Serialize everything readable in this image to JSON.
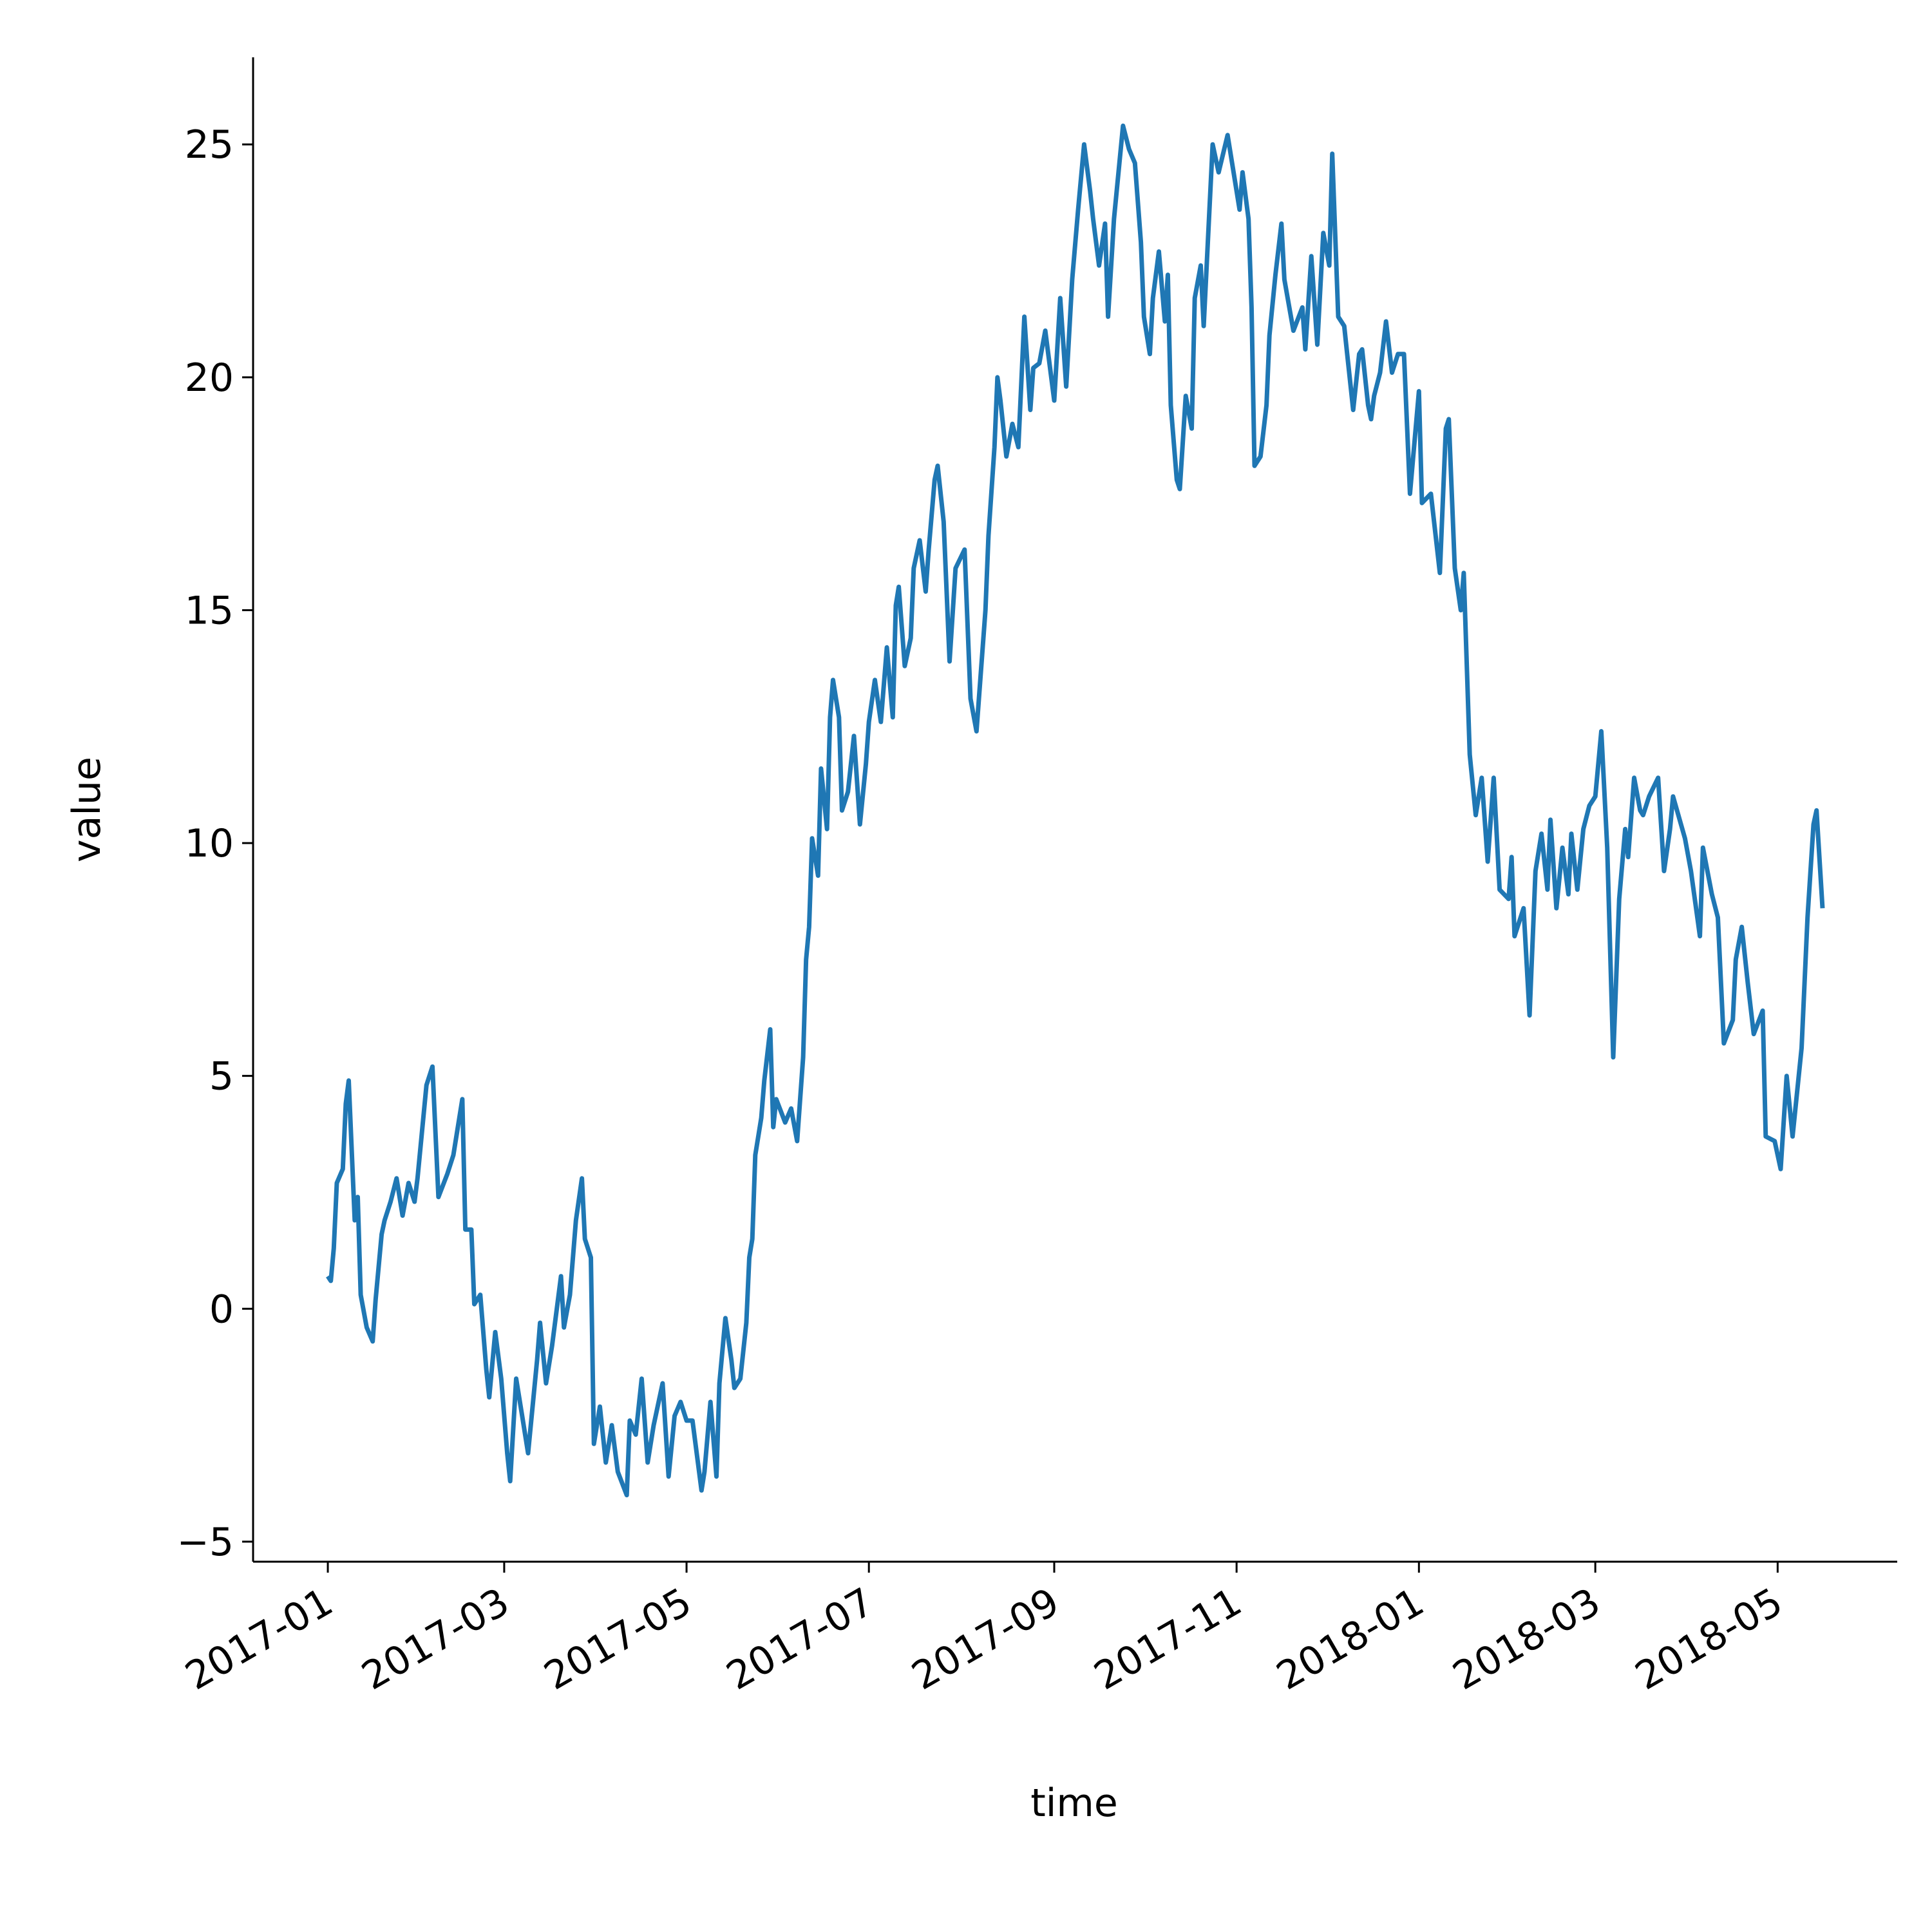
{
  "chart_data": {
    "type": "line",
    "x_label": "time",
    "y_label": "value",
    "color": "#1f77b4",
    "xlim": [
      -25,
      525
    ],
    "ylim": [
      -5.43,
      26.87
    ],
    "xticks": [
      {
        "value": 0,
        "label": "2017-01"
      },
      {
        "value": 59,
        "label": "2017-03"
      },
      {
        "value": 120,
        "label": "2017-05"
      },
      {
        "value": 181,
        "label": "2017-07"
      },
      {
        "value": 243,
        "label": "2017-09"
      },
      {
        "value": 304,
        "label": "2017-11"
      },
      {
        "value": 365,
        "label": "2018-01"
      },
      {
        "value": 424,
        "label": "2018-03"
      },
      {
        "value": 485,
        "label": "2018-05"
      }
    ],
    "yticks": [
      {
        "value": -5,
        "label": "−5"
      },
      0,
      5,
      10,
      15,
      20,
      25
    ],
    "x": [
      0,
      1,
      2,
      3,
      5,
      6,
      7,
      9,
      10,
      11,
      13,
      15,
      16,
      18,
      19,
      21,
      23,
      25,
      27,
      29,
      30,
      33,
      35,
      37,
      40,
      42,
      45,
      46,
      48,
      49,
      51,
      53,
      54,
      56,
      58,
      60,
      61,
      63,
      65,
      67,
      70,
      71,
      73,
      75,
      78,
      79,
      81,
      83,
      85,
      86,
      88,
      89,
      91,
      93,
      95,
      97,
      100,
      101,
      103,
      105,
      107,
      109,
      112,
      114,
      116,
      118,
      120,
      122,
      125,
      126,
      128,
      130,
      131,
      133,
      135,
      136,
      138,
      140,
      141,
      142,
      143,
      145,
      146,
      148,
      149,
      150,
      153,
      155,
      157,
      159,
      160,
      161,
      162,
      164,
      165,
      167,
      168,
      169,
      171,
      172,
      174,
      176,
      178,
      180,
      181,
      183,
      185,
      187,
      189,
      190,
      191,
      193,
      195,
      196,
      198,
      200,
      201,
      203,
      204,
      206,
      208,
      210,
      213,
      215,
      217,
      220,
      221,
      223,
      224,
      225,
      227,
      229,
      231,
      233,
      235,
      236,
      238,
      240,
      243,
      245,
      247,
      249,
      251,
      253,
      255,
      256,
      258,
      260,
      261,
      263,
      266,
      268,
      270,
      272,
      273,
      275,
      276,
      278,
      280,
      281,
      282,
      284,
      285,
      287,
      289,
      290,
      292,
      293,
      296,
      298,
      301,
      303,
      305,
      306,
      308,
      309,
      310,
      312,
      314,
      315,
      317,
      319,
      320,
      323,
      326,
      327,
      329,
      331,
      333,
      335,
      336,
      338,
      340,
      341,
      343,
      345,
      346,
      348,
      349,
      350,
      352,
      354,
      356,
      358,
      360,
      362,
      365,
      366,
      369,
      372,
      374,
      375,
      377,
      379,
      380,
      382,
      384,
      386,
      388,
      390,
      392,
      395,
      396,
      397,
      400,
      402,
      404,
      406,
      408,
      409,
      411,
      413,
      415,
      416,
      418,
      420,
      422,
      424,
      426,
      428,
      430,
      432,
      434,
      435,
      437,
      439,
      440,
      442,
      445,
      447,
      449,
      450,
      454,
      456,
      459,
      460,
      463,
      465,
      467,
      470,
      471,
      473,
      475,
      477,
      480,
      481,
      484,
      486,
      488,
      490,
      493,
      495,
      497,
      498,
      500
    ],
    "values": [
      0.7,
      0.6,
      1.3,
      2.7,
      3.0,
      4.4,
      4.9,
      1.9,
      2.4,
      0.3,
      -0.4,
      -0.7,
      0.2,
      1.6,
      1.9,
      2.3,
      2.8,
      2.0,
      2.7,
      2.3,
      2.8,
      4.8,
      5.2,
      2.4,
      2.9,
      3.3,
      4.5,
      1.7,
      1.7,
      0.1,
      0.3,
      -1.3,
      -1.9,
      -0.5,
      -1.5,
      -3.1,
      -3.7,
      -1.5,
      -2.3,
      -3.1,
      -1.1,
      -0.3,
      -1.6,
      -0.8,
      0.7,
      -0.4,
      0.3,
      1.9,
      2.8,
      1.5,
      1.1,
      -2.9,
      -2.1,
      -3.3,
      -2.5,
      -3.5,
      -4.0,
      -2.4,
      -2.7,
      -1.5,
      -3.3,
      -2.5,
      -1.6,
      -3.6,
      -2.3,
      -2.0,
      -2.4,
      -2.4,
      -3.9,
      -3.5,
      -2.0,
      -3.6,
      -1.6,
      -0.2,
      -1.1,
      -1.7,
      -1.5,
      -0.3,
      1.1,
      1.5,
      3.3,
      4.1,
      4.9,
      6.0,
      3.9,
      4.5,
      4.0,
      4.3,
      3.6,
      5.4,
      7.5,
      8.2,
      10.1,
      9.3,
      11.6,
      10.3,
      12.7,
      13.5,
      12.7,
      10.7,
      11.1,
      12.3,
      10.4,
      11.7,
      12.6,
      13.5,
      12.6,
      14.2,
      12.7,
      15.1,
      15.5,
      13.8,
      14.4,
      15.9,
      16.5,
      15.4,
      16.3,
      17.8,
      18.1,
      16.9,
      13.9,
      15.9,
      16.3,
      13.1,
      12.4,
      15.0,
      16.6,
      18.5,
      20.0,
      19.5,
      18.3,
      19.0,
      18.5,
      21.3,
      19.3,
      20.2,
      20.3,
      21.0,
      19.5,
      21.7,
      19.8,
      22.1,
      23.6,
      25.0,
      24.0,
      23.4,
      22.4,
      23.3,
      21.3,
      23.4,
      25.4,
      24.9,
      24.6,
      22.9,
      21.3,
      20.5,
      21.7,
      22.7,
      21.2,
      22.2,
      19.4,
      17.8,
      17.6,
      19.6,
      18.9,
      21.7,
      22.4,
      21.1,
      25.0,
      24.4,
      25.2,
      24.4,
      23.6,
      24.4,
      23.4,
      21.5,
      18.1,
      18.3,
      19.4,
      20.9,
      22.2,
      23.3,
      22.1,
      21.0,
      21.5,
      20.6,
      22.6,
      20.7,
      23.1,
      22.4,
      24.8,
      21.3,
      21.1,
      20.5,
      19.3,
      20.5,
      20.6,
      19.4,
      19.1,
      19.6,
      20.1,
      21.2,
      20.1,
      20.5,
      20.5,
      17.5,
      19.7,
      17.3,
      17.5,
      15.8,
      18.9,
      19.1,
      15.9,
      15.0,
      15.8,
      11.9,
      10.6,
      11.4,
      9.6,
      11.4,
      9.0,
      8.8,
      9.7,
      8.0,
      8.6,
      6.3,
      9.4,
      10.2,
      9.0,
      10.5,
      8.6,
      9.9,
      8.9,
      10.2,
      9.0,
      10.3,
      10.8,
      11.0,
      12.4,
      9.9,
      5.4,
      8.8,
      10.3,
      9.7,
      11.4,
      10.7,
      10.6,
      11.0,
      11.4,
      9.4,
      10.3,
      11.0,
      10.1,
      9.4,
      8.0,
      9.9,
      8.9,
      8.4,
      5.7,
      6.2,
      7.5,
      8.2,
      7.0,
      5.9,
      6.4,
      3.7,
      3.6,
      3.0,
      5.0,
      3.7,
      5.6,
      8.4,
      10.4,
      10.7,
      8.6
    ]
  }
}
